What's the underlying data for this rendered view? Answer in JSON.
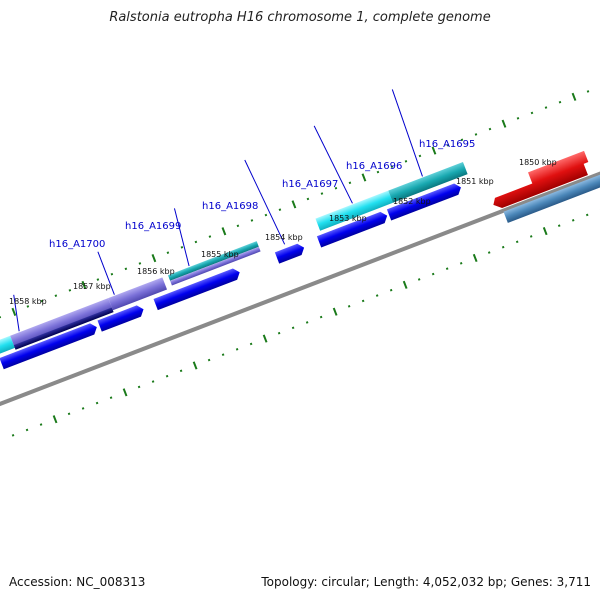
{
  "title": "Ralstonia eutropha H16 chromosome 1, complete genome",
  "accession_text": "Accession: NC_008313",
  "summary_text": "Topology: circular; Length: 4,052,032 bp; Genes: 3,711",
  "tick_labels": [
    "1850 kbp",
    "1851 kbp",
    "1852 kbp",
    "1853 kbp",
    "1854 kbp",
    "1855 kbp",
    "1856 kbp",
    "1857 kbp",
    "1858 kbp"
  ],
  "gene_labels": [
    "h16_A1695",
    "h16_A1696",
    "h16_A1697",
    "h16_A1698",
    "h16_A1699",
    "h16_A1700"
  ],
  "colors": {
    "backbone": "#8a8a8a",
    "ticks": "#1a7a1a",
    "cds_forward": "#0000ee",
    "cds_reverse": "#e01010",
    "gene_cyan": "#22e0f0",
    "gene_teal": "#18a8b0",
    "gene_purple": "#7a70d8",
    "gene_steel": "#4a86b8",
    "label_blue": "#0000cc"
  }
}
